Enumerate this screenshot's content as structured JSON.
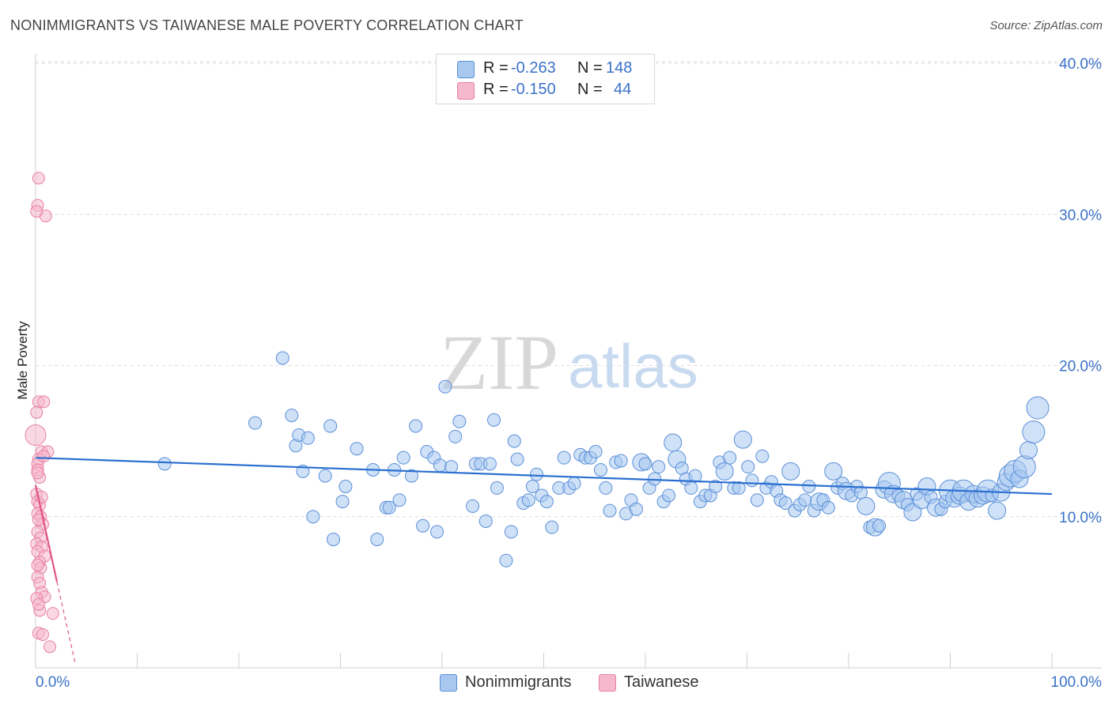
{
  "title": "NONIMMIGRANTS VS TAIWANESE MALE POVERTY CORRELATION CHART",
  "source": "Source: ZipAtlas.com",
  "watermark": {
    "zip": "ZIP",
    "atlas": "atlas"
  },
  "legend": {
    "rows": [
      {
        "r_label": "R =",
        "r_value": "-0.263",
        "n_label": "N =",
        "n_value": "148"
      },
      {
        "r_label": "R =",
        "r_value": "-0.150",
        "n_label": "N =",
        "n_value": "44"
      }
    ]
  },
  "bottom_legend": {
    "a": "Nonimmigrants",
    "b": "Taiwanese"
  },
  "colors": {
    "blue_fill": "#a8c8f0",
    "blue_stroke": "#5a8fd8",
    "blue_line": "#2a6fd0",
    "pink_fill": "#f6b8cc",
    "pink_stroke": "#e87fa2",
    "pink_line": "#e0558a",
    "axis_text": "#3a72c8"
  },
  "chart_data": {
    "type": "scatter",
    "title": "NONIMMIGRANTS VS TAIWANESE MALE POVERTY CORRELATION CHART",
    "xlabel": "",
    "ylabel": "Male Poverty",
    "xlim": [
      0,
      100
    ],
    "ylim": [
      0,
      40
    ],
    "x_tick_labels": [
      "0.0%",
      "100.0%"
    ],
    "y_ticks": [
      10,
      20,
      30,
      40
    ],
    "y_tick_labels": [
      "10.0%",
      "20.0%",
      "30.0%",
      "40.0%"
    ],
    "grid": true,
    "legend_position": "top-center",
    "series": [
      {
        "name": "Nonimmigrants",
        "color": "#a8c8f0",
        "trend": {
          "x": [
            0,
            100
          ],
          "y": [
            13.9,
            11.5
          ]
        },
        "points": [
          [
            12.7,
            13.5,
            3
          ],
          [
            21.6,
            16.2,
            3
          ],
          [
            24.3,
            20.5,
            3
          ],
          [
            25.2,
            16.7,
            3
          ],
          [
            25.6,
            14.7,
            3
          ],
          [
            25.9,
            15.4,
            3
          ],
          [
            26.3,
            13.0,
            3
          ],
          [
            26.8,
            15.2,
            3
          ],
          [
            27.3,
            10.0,
            3
          ],
          [
            28.5,
            12.7,
            3
          ],
          [
            29.0,
            16.0,
            3
          ],
          [
            29.3,
            8.5,
            3
          ],
          [
            30.2,
            11.0,
            3
          ],
          [
            30.5,
            12.0,
            3
          ],
          [
            31.6,
            14.5,
            3
          ],
          [
            33.2,
            13.1,
            3
          ],
          [
            33.6,
            8.5,
            3
          ],
          [
            34.5,
            10.6,
            3
          ],
          [
            34.8,
            10.6,
            3
          ],
          [
            35.3,
            13.1,
            3
          ],
          [
            35.8,
            11.1,
            3
          ],
          [
            36.2,
            13.9,
            3
          ],
          [
            37.0,
            12.7,
            3
          ],
          [
            37.4,
            16.0,
            3
          ],
          [
            38.1,
            9.4,
            3
          ],
          [
            38.5,
            14.3,
            3
          ],
          [
            39.2,
            13.9,
            3
          ],
          [
            39.5,
            9.0,
            3
          ],
          [
            39.8,
            13.4,
            3
          ],
          [
            40.3,
            18.6,
            3
          ],
          [
            40.9,
            13.3,
            3
          ],
          [
            41.3,
            15.3,
            3
          ],
          [
            41.7,
            16.3,
            3
          ],
          [
            43.0,
            10.7,
            3
          ],
          [
            43.3,
            13.5,
            3
          ],
          [
            43.8,
            13.5,
            3
          ],
          [
            44.3,
            9.7,
            3
          ],
          [
            44.7,
            13.5,
            3
          ],
          [
            45.1,
            16.4,
            3
          ],
          [
            45.4,
            11.9,
            3
          ],
          [
            46.3,
            7.1,
            3
          ],
          [
            46.8,
            9.0,
            3
          ],
          [
            47.1,
            15.0,
            3
          ],
          [
            47.4,
            13.8,
            3
          ],
          [
            48.0,
            10.9,
            3
          ],
          [
            48.5,
            11.1,
            3
          ],
          [
            48.9,
            12.0,
            3
          ],
          [
            49.3,
            12.8,
            3
          ],
          [
            49.8,
            11.4,
            3
          ],
          [
            50.3,
            11.0,
            3
          ],
          [
            50.8,
            9.3,
            3
          ],
          [
            51.5,
            11.9,
            3
          ],
          [
            52.0,
            13.9,
            3
          ],
          [
            52.5,
            11.9,
            3
          ],
          [
            53.0,
            12.2,
            3
          ],
          [
            53.6,
            14.1,
            3
          ],
          [
            54.1,
            13.9,
            3
          ],
          [
            54.6,
            13.9,
            3
          ],
          [
            55.1,
            14.3,
            3
          ],
          [
            55.6,
            13.1,
            3
          ],
          [
            56.1,
            11.9,
            3
          ],
          [
            56.5,
            10.4,
            3
          ],
          [
            57.1,
            13.6,
            3
          ],
          [
            57.6,
            13.7,
            3
          ],
          [
            58.1,
            10.2,
            3
          ],
          [
            58.6,
            11.1,
            3
          ],
          [
            59.1,
            10.5,
            3
          ],
          [
            59.6,
            13.6,
            4
          ],
          [
            60.0,
            13.5,
            3
          ],
          [
            60.4,
            11.9,
            3
          ],
          [
            60.9,
            12.5,
            3
          ],
          [
            61.3,
            13.3,
            3
          ],
          [
            61.8,
            11.0,
            3
          ],
          [
            62.3,
            11.4,
            3
          ],
          [
            62.7,
            14.9,
            4
          ],
          [
            63.1,
            13.8,
            4
          ],
          [
            63.6,
            13.2,
            3
          ],
          [
            64.0,
            12.5,
            3
          ],
          [
            64.5,
            11.9,
            3
          ],
          [
            64.9,
            12.7,
            3
          ],
          [
            65.4,
            11.0,
            3
          ],
          [
            65.9,
            11.4,
            3
          ],
          [
            66.4,
            11.4,
            3
          ],
          [
            66.9,
            12.0,
            3
          ],
          [
            67.3,
            13.6,
            3
          ],
          [
            67.8,
            13.0,
            4
          ],
          [
            68.3,
            13.9,
            3
          ],
          [
            68.7,
            11.9,
            3
          ],
          [
            69.2,
            11.9,
            3
          ],
          [
            69.6,
            15.1,
            4
          ],
          [
            70.1,
            13.3,
            3
          ],
          [
            70.5,
            12.4,
            3
          ],
          [
            71.0,
            11.1,
            3
          ],
          [
            71.5,
            14.0,
            3
          ],
          [
            71.9,
            11.9,
            3
          ],
          [
            72.4,
            12.3,
            3
          ],
          [
            72.9,
            11.7,
            3
          ],
          [
            73.3,
            11.1,
            3
          ],
          [
            73.8,
            10.9,
            3
          ],
          [
            74.3,
            13.0,
            4
          ],
          [
            74.7,
            10.4,
            3
          ],
          [
            75.2,
            10.8,
            3
          ],
          [
            75.7,
            11.1,
            3
          ],
          [
            76.1,
            12.0,
            3
          ],
          [
            76.6,
            10.4,
            3
          ],
          [
            77.1,
            11.0,
            4
          ],
          [
            77.5,
            11.1,
            3
          ],
          [
            78.0,
            10.6,
            3
          ],
          [
            78.5,
            13.0,
            4
          ],
          [
            78.9,
            11.9,
            3
          ],
          [
            79.4,
            12.2,
            3
          ],
          [
            79.8,
            11.7,
            4
          ],
          [
            80.3,
            11.4,
            3
          ],
          [
            80.8,
            12.0,
            3
          ],
          [
            81.2,
            11.6,
            3
          ],
          [
            81.7,
            10.7,
            4
          ],
          [
            82.1,
            9.3,
            3
          ],
          [
            82.6,
            9.3,
            4
          ],
          [
            83.0,
            9.4,
            3
          ],
          [
            83.5,
            11.8,
            4
          ],
          [
            84.0,
            12.2,
            5
          ],
          [
            84.4,
            11.5,
            4
          ],
          [
            84.9,
            11.4,
            3
          ],
          [
            85.4,
            11.1,
            4
          ],
          [
            85.8,
            10.8,
            3
          ],
          [
            86.3,
            10.3,
            4
          ],
          [
            86.7,
            11.5,
            3
          ],
          [
            87.2,
            11.1,
            4
          ],
          [
            87.7,
            12.0,
            4
          ],
          [
            88.1,
            11.3,
            3
          ],
          [
            88.6,
            10.6,
            4
          ],
          [
            89.1,
            10.5,
            3
          ],
          [
            89.5,
            11.0,
            3
          ],
          [
            90.0,
            11.7,
            5
          ],
          [
            90.4,
            11.2,
            4
          ],
          [
            90.9,
            11.4,
            4
          ],
          [
            91.3,
            11.7,
            5
          ],
          [
            91.8,
            11.0,
            4
          ],
          [
            92.3,
            11.5,
            4
          ],
          [
            92.7,
            11.2,
            4
          ],
          [
            93.2,
            11.4,
            4
          ],
          [
            93.7,
            11.7,
            5
          ],
          [
            94.1,
            11.4,
            3
          ],
          [
            94.6,
            10.4,
            4
          ],
          [
            95.0,
            11.6,
            4
          ],
          [
            95.5,
            12.3,
            4
          ],
          [
            95.9,
            12.7,
            5
          ],
          [
            96.4,
            13.0,
            5
          ],
          [
            96.8,
            12.5,
            4
          ],
          [
            97.3,
            13.3,
            5
          ],
          [
            97.7,
            14.4,
            4
          ],
          [
            98.2,
            15.6,
            5
          ],
          [
            98.6,
            17.2,
            5
          ]
        ]
      },
      {
        "name": "Taiwanese",
        "color": "#f6b8cc",
        "trend": {
          "x": [
            0,
            2.1
          ],
          "y": [
            12.1,
            5.7
          ]
        },
        "trend_extension": {
          "x": [
            2.1,
            3.9
          ],
          "y": [
            5.7,
            0.3
          ]
        },
        "points": [
          [
            0.3,
            32.4,
            2
          ],
          [
            0.2,
            30.6,
            2
          ],
          [
            1.0,
            29.9,
            2
          ],
          [
            0.1,
            30.2,
            2
          ],
          [
            0.3,
            17.6,
            2
          ],
          [
            0.8,
            17.6,
            2
          ],
          [
            0.1,
            16.9,
            2
          ],
          [
            0.0,
            15.4,
            4
          ],
          [
            0.6,
            14.3,
            2
          ],
          [
            1.2,
            14.3,
            2
          ],
          [
            0.3,
            13.8,
            2
          ],
          [
            0.2,
            13.5,
            2
          ],
          [
            0.2,
            13.1,
            2
          ],
          [
            0.4,
            12.6,
            2
          ],
          [
            0.1,
            11.5,
            2
          ],
          [
            0.2,
            11.0,
            2
          ],
          [
            0.4,
            10.8,
            2
          ],
          [
            0.2,
            10.2,
            2
          ],
          [
            0.5,
            10.0,
            2
          ],
          [
            0.7,
            9.5,
            2
          ],
          [
            0.2,
            9.0,
            2
          ],
          [
            0.5,
            8.6,
            2
          ],
          [
            0.1,
            8.2,
            2
          ],
          [
            0.6,
            8.0,
            2
          ],
          [
            0.2,
            7.7,
            2
          ],
          [
            0.9,
            7.4,
            2
          ],
          [
            0.4,
            7.0,
            2
          ],
          [
            0.5,
            6.6,
            2
          ],
          [
            0.2,
            6.0,
            2
          ],
          [
            0.4,
            5.6,
            2
          ],
          [
            0.6,
            5.0,
            2
          ],
          [
            0.9,
            4.7,
            2
          ],
          [
            0.1,
            4.6,
            2
          ],
          [
            0.4,
            3.8,
            2
          ],
          [
            1.7,
            3.6,
            2
          ],
          [
            0.3,
            2.3,
            2
          ],
          [
            0.7,
            2.2,
            2
          ],
          [
            1.4,
            1.4,
            2
          ],
          [
            0.2,
            12.9,
            2
          ],
          [
            0.3,
            9.8,
            2
          ],
          [
            0.6,
            11.3,
            2
          ],
          [
            0.2,
            6.8,
            2
          ],
          [
            0.8,
            14.0,
            2
          ],
          [
            0.3,
            4.2,
            2
          ]
        ]
      }
    ]
  }
}
